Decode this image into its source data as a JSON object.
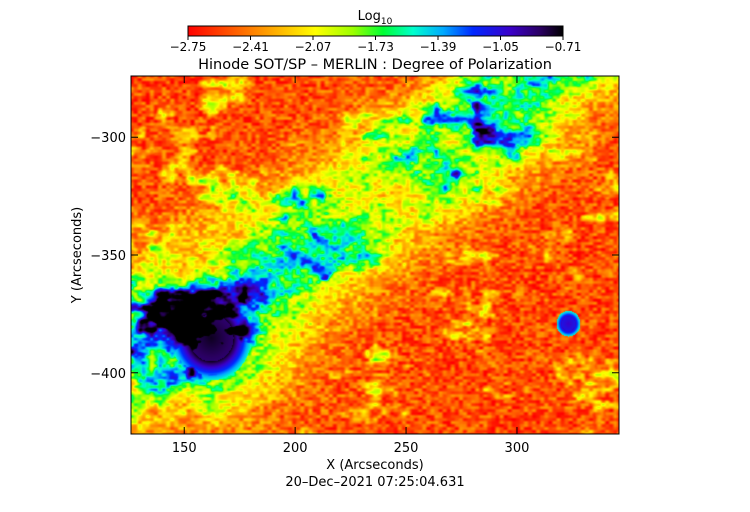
{
  "chart_data": {
    "type": "heatmap",
    "title": "Hinode SOT/SP – MERLIN : Degree of Polarization",
    "xlabel": "X (Arcseconds)",
    "ylabel": "Y (Arcseconds)",
    "timestamp": "20–Dec–2021 07:25:04.631",
    "xlim": [
      126,
      346
    ],
    "ylim": [
      -426,
      -274
    ],
    "x_ticks": [
      150,
      200,
      250,
      300
    ],
    "y_ticks": [
      -300,
      -350,
      -400
    ],
    "x_tick_labels": [
      "150",
      "200",
      "250",
      "300"
    ],
    "y_tick_labels": [
      "−300",
      "−350",
      "−400"
    ],
    "colorbar": {
      "title": "Log",
      "title_subscript": "10",
      "range": [
        -2.75,
        -0.71
      ],
      "ticks": [
        -2.75,
        -2.41,
        -2.07,
        -1.73,
        -1.39,
        -1.05,
        -0.71
      ],
      "tick_labels": [
        "−2.75",
        "−2.41",
        "−2.07",
        "−1.73",
        "−1.39",
        "−1.05",
        "−0.71"
      ],
      "colormap": "rainbow"
    },
    "features": [
      {
        "kind": "sunspot",
        "x": 162,
        "y": -385,
        "radius": 10,
        "value": -0.75
      },
      {
        "kind": "pore",
        "x": 152,
        "y": -371,
        "radius": 3,
        "value": -1.0
      },
      {
        "kind": "pore",
        "x": 323,
        "y": -379,
        "radius": 3,
        "value": -1.0
      }
    ]
  }
}
